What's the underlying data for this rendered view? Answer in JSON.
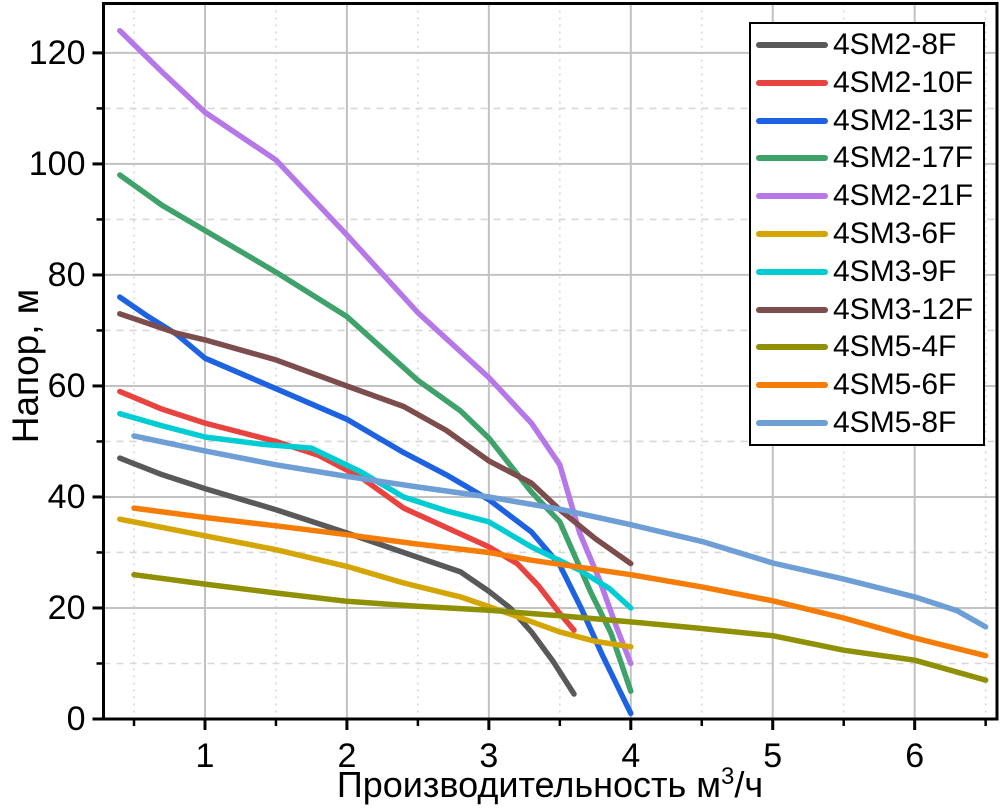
{
  "axis_titles": {
    "y": "Напор, м",
    "x_prefix": "Производительность м",
    "x_superscript": "3",
    "x_suffix": "/ч"
  },
  "chart_data": {
    "type": "line",
    "title": "",
    "xlabel": "Производительность м³/ч",
    "ylabel": "Напор, м",
    "xlim": [
      0.285,
      6.58
    ],
    "ylim": [
      0,
      128.9
    ],
    "grid": {
      "major_color": "#c2c2c2",
      "minor_color": "#d8d8d8",
      "major_on": true,
      "minor_on": true
    },
    "legend_position": "top-right",
    "x_major_ticks": [
      1,
      2,
      3,
      4,
      5,
      6
    ],
    "x_tick_labels": [
      "1",
      "2",
      "3",
      "4",
      "5",
      "6"
    ],
    "x_minor_ticks": [
      0.5,
      1.5,
      2.5,
      3.5,
      4.5,
      5.5,
      6.5
    ],
    "y_major_ticks": [
      0,
      20,
      40,
      60,
      80,
      100,
      120
    ],
    "y_tick_labels": [
      "0",
      "20",
      "40",
      "60",
      "80",
      "100",
      "120"
    ],
    "y_minor_ticks": [
      10,
      30,
      50,
      70,
      90,
      110
    ],
    "series": [
      {
        "name": "4SM2-8F",
        "color": "#595959",
        "points": [
          [
            0.4,
            47
          ],
          [
            0.7,
            44
          ],
          [
            1,
            41.5
          ],
          [
            1.5,
            37.7
          ],
          [
            2,
            33.5
          ],
          [
            2.4,
            30
          ],
          [
            2.8,
            26.5
          ],
          [
            3,
            23
          ],
          [
            3.15,
            20
          ],
          [
            3.3,
            15.7
          ],
          [
            3.45,
            10.5
          ],
          [
            3.6,
            4.5
          ]
        ]
      },
      {
        "name": "4SM2-10F",
        "color": "#e8433e",
        "points": [
          [
            0.4,
            59
          ],
          [
            0.7,
            55.8
          ],
          [
            1,
            53.3
          ],
          [
            1.5,
            50
          ],
          [
            1.8,
            47.5
          ],
          [
            2.1,
            43.5
          ],
          [
            2.4,
            38
          ],
          [
            2.7,
            34.5
          ],
          [
            3,
            31
          ],
          [
            3.2,
            28
          ],
          [
            3.35,
            24
          ],
          [
            3.5,
            19
          ],
          [
            3.6,
            16
          ]
        ]
      },
      {
        "name": "4SM2-13F",
        "color": "#1d62e0",
        "points": [
          [
            0.4,
            76
          ],
          [
            0.6,
            72.5
          ],
          [
            0.8,
            69.3
          ],
          [
            1,
            65
          ],
          [
            1.5,
            59.5
          ],
          [
            2,
            54
          ],
          [
            2.4,
            48
          ],
          [
            2.7,
            44
          ],
          [
            3,
            39.5
          ],
          [
            3.3,
            33.7
          ],
          [
            3.5,
            27.7
          ],
          [
            3.65,
            20
          ],
          [
            3.8,
            11.5
          ],
          [
            4,
            1
          ]
        ]
      },
      {
        "name": "4SM2-17F",
        "color": "#3fa26a",
        "points": [
          [
            0.4,
            98
          ],
          [
            0.7,
            92.5
          ],
          [
            1,
            88
          ],
          [
            1.5,
            80.5
          ],
          [
            2,
            72.5
          ],
          [
            2.5,
            61
          ],
          [
            2.8,
            55.5
          ],
          [
            3,
            50.6
          ],
          [
            3.3,
            40.9
          ],
          [
            3.5,
            35.5
          ],
          [
            3.72,
            22.7
          ],
          [
            3.86,
            15.5
          ],
          [
            4,
            5
          ]
        ]
      },
      {
        "name": "4SM2-21F",
        "color": "#b678e8",
        "points": [
          [
            0.4,
            124
          ],
          [
            0.7,
            116.5
          ],
          [
            1,
            109.3
          ],
          [
            1.5,
            100.7
          ],
          [
            2,
            87.2
          ],
          [
            2.5,
            73.2
          ],
          [
            3,
            61.5
          ],
          [
            3.3,
            53.3
          ],
          [
            3.5,
            45.8
          ],
          [
            3.64,
            33.5
          ],
          [
            3.78,
            25
          ],
          [
            3.9,
            16.5
          ],
          [
            4,
            10
          ]
        ]
      },
      {
        "name": "4SM3-6F",
        "color": "#d4a503",
        "points": [
          [
            0.4,
            36
          ],
          [
            1,
            33
          ],
          [
            1.5,
            30.5
          ],
          [
            2,
            27.5
          ],
          [
            2.4,
            24.5
          ],
          [
            2.8,
            22
          ],
          [
            3.13,
            19.1
          ],
          [
            3.5,
            15.7
          ],
          [
            3.75,
            14
          ],
          [
            4,
            13
          ]
        ]
      },
      {
        "name": "4SM3-9F",
        "color": "#00ccd4",
        "points": [
          [
            0.4,
            55
          ],
          [
            0.7,
            52.8
          ],
          [
            1,
            50.8
          ],
          [
            1.4,
            49.5
          ],
          [
            1.75,
            48.8
          ],
          [
            2.1,
            44.5
          ],
          [
            2.4,
            40
          ],
          [
            2.7,
            37.5
          ],
          [
            3,
            35.5
          ],
          [
            3.3,
            31
          ],
          [
            3.64,
            26.8
          ],
          [
            3.85,
            23.5
          ],
          [
            4,
            20
          ]
        ]
      },
      {
        "name": "4SM3-12F",
        "color": "#7d4d4d",
        "points": [
          [
            0.4,
            73
          ],
          [
            0.8,
            69.5
          ],
          [
            1,
            68.3
          ],
          [
            1.5,
            64.7
          ],
          [
            2,
            60
          ],
          [
            2.4,
            56.3
          ],
          [
            2.7,
            52
          ],
          [
            3,
            46.5
          ],
          [
            3.3,
            42.5
          ],
          [
            3.5,
            37.7
          ],
          [
            3.75,
            32.5
          ],
          [
            4,
            28
          ]
        ]
      },
      {
        "name": "4SM5-4F",
        "color": "#8f9004",
        "points": [
          [
            0.5,
            26
          ],
          [
            1,
            24.3
          ],
          [
            1.5,
            22.7
          ],
          [
            2,
            21.2
          ],
          [
            2.5,
            20.3
          ],
          [
            3,
            19.6
          ],
          [
            3.5,
            18.6
          ],
          [
            4,
            17.5
          ],
          [
            4.5,
            16.3
          ],
          [
            5,
            15
          ],
          [
            5.5,
            12.4
          ],
          [
            6,
            10.6
          ],
          [
            6.5,
            7
          ]
        ]
      },
      {
        "name": "4SM5-6F",
        "color": "#f57d07",
        "points": [
          [
            0.5,
            38
          ],
          [
            1,
            36.3
          ],
          [
            1.5,
            34.8
          ],
          [
            2,
            33.2
          ],
          [
            2.5,
            31.5
          ],
          [
            3,
            30
          ],
          [
            3.3,
            28.6
          ],
          [
            4,
            26
          ],
          [
            4.5,
            23.8
          ],
          [
            5,
            21.3
          ],
          [
            5.5,
            18.2
          ],
          [
            6,
            14.6
          ],
          [
            6.5,
            11.4
          ]
        ]
      },
      {
        "name": "4SM5-8F",
        "color": "#6d9ed6",
        "points": [
          [
            0.5,
            51
          ],
          [
            1,
            48.3
          ],
          [
            1.5,
            45.8
          ],
          [
            2,
            43.7
          ],
          [
            2.5,
            41.8
          ],
          [
            3,
            40
          ],
          [
            3.5,
            37.8
          ],
          [
            4,
            35
          ],
          [
            4.5,
            32
          ],
          [
            5,
            28.1
          ],
          [
            5.5,
            25.2
          ],
          [
            6,
            22
          ],
          [
            6.3,
            19.5
          ],
          [
            6.5,
            16.6
          ]
        ]
      }
    ]
  }
}
